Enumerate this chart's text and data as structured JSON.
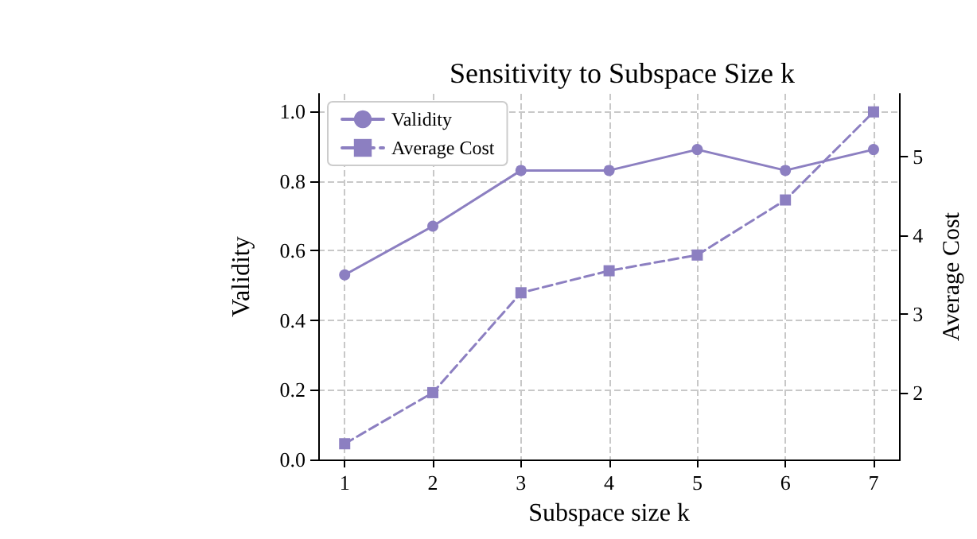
{
  "chart_data": {
    "type": "line",
    "title": "Sensitivity to Subspace Size k",
    "xlabel": "Subspace size k",
    "ylabel": "Validity",
    "y2label": "Average Cost",
    "x": [
      1,
      2,
      3,
      4,
      5,
      6,
      7
    ],
    "series": [
      {
        "name": "Validity",
        "color": "#8c7fc1",
        "values": [
          0.53,
          0.67,
          0.83,
          0.83,
          0.89,
          0.83,
          0.89
        ],
        "marker": "circle",
        "line_style": "solid"
      },
      {
        "name": "Average Cost",
        "color": "#8c7fc1",
        "values": [
          1.35,
          2.0,
          3.27,
          3.55,
          3.75,
          4.45,
          5.57
        ],
        "marker": "square",
        "line_style": "dashed",
        "axis": "y2"
      }
    ],
    "xlim": [
      0.7,
      7.3
    ],
    "xticks": [
      1,
      2,
      3,
      4,
      5,
      6,
      7
    ],
    "ylim": [
      0,
      1.05
    ],
    "yticks": [
      {
        "value": 0,
        "label": "0.0"
      },
      0.2,
      0.4,
      0.6,
      0.8,
      {
        "value": 1,
        "label": "1.0"
      }
    ],
    "y2lim": [
      1.15,
      5.8
    ],
    "y2ticks": [
      2,
      3,
      4,
      5
    ],
    "grid": true,
    "legend": "top left"
  }
}
